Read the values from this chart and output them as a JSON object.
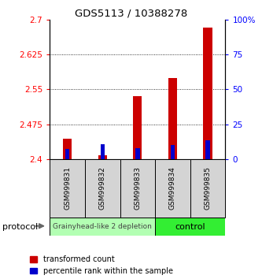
{
  "title": "GDS5113 / 10388278",
  "categories": [
    "GSM999831",
    "GSM999832",
    "GSM999833",
    "GSM999834",
    "GSM999835"
  ],
  "red_values": [
    2.443,
    2.408,
    2.535,
    2.575,
    2.682
  ],
  "blue_values": [
    2.422,
    2.432,
    2.423,
    2.43,
    2.44
  ],
  "ylim_left": [
    2.4,
    2.7
  ],
  "ylim_right": [
    0,
    100
  ],
  "yticks_left": [
    2.4,
    2.475,
    2.55,
    2.625,
    2.7
  ],
  "ytick_labels_left": [
    "2.4",
    "2.475",
    "2.55",
    "2.625",
    "2.7"
  ],
  "yticks_right": [
    0,
    25,
    50,
    75,
    100
  ],
  "ytick_labels_right": [
    "0",
    "25",
    "50",
    "75",
    "100%"
  ],
  "group_labels": [
    "Grainyhead-like 2 depletion",
    "control"
  ],
  "group_colors": [
    "#b3ffb3",
    "#33ee33"
  ],
  "red_color": "#cc0000",
  "blue_color": "#0000cc",
  "label_bg": "#d4d4d4",
  "legend_labels": [
    "transformed count",
    "percentile rank within the sample"
  ],
  "protocol_label": "protocol",
  "title_fontsize": 9.5
}
